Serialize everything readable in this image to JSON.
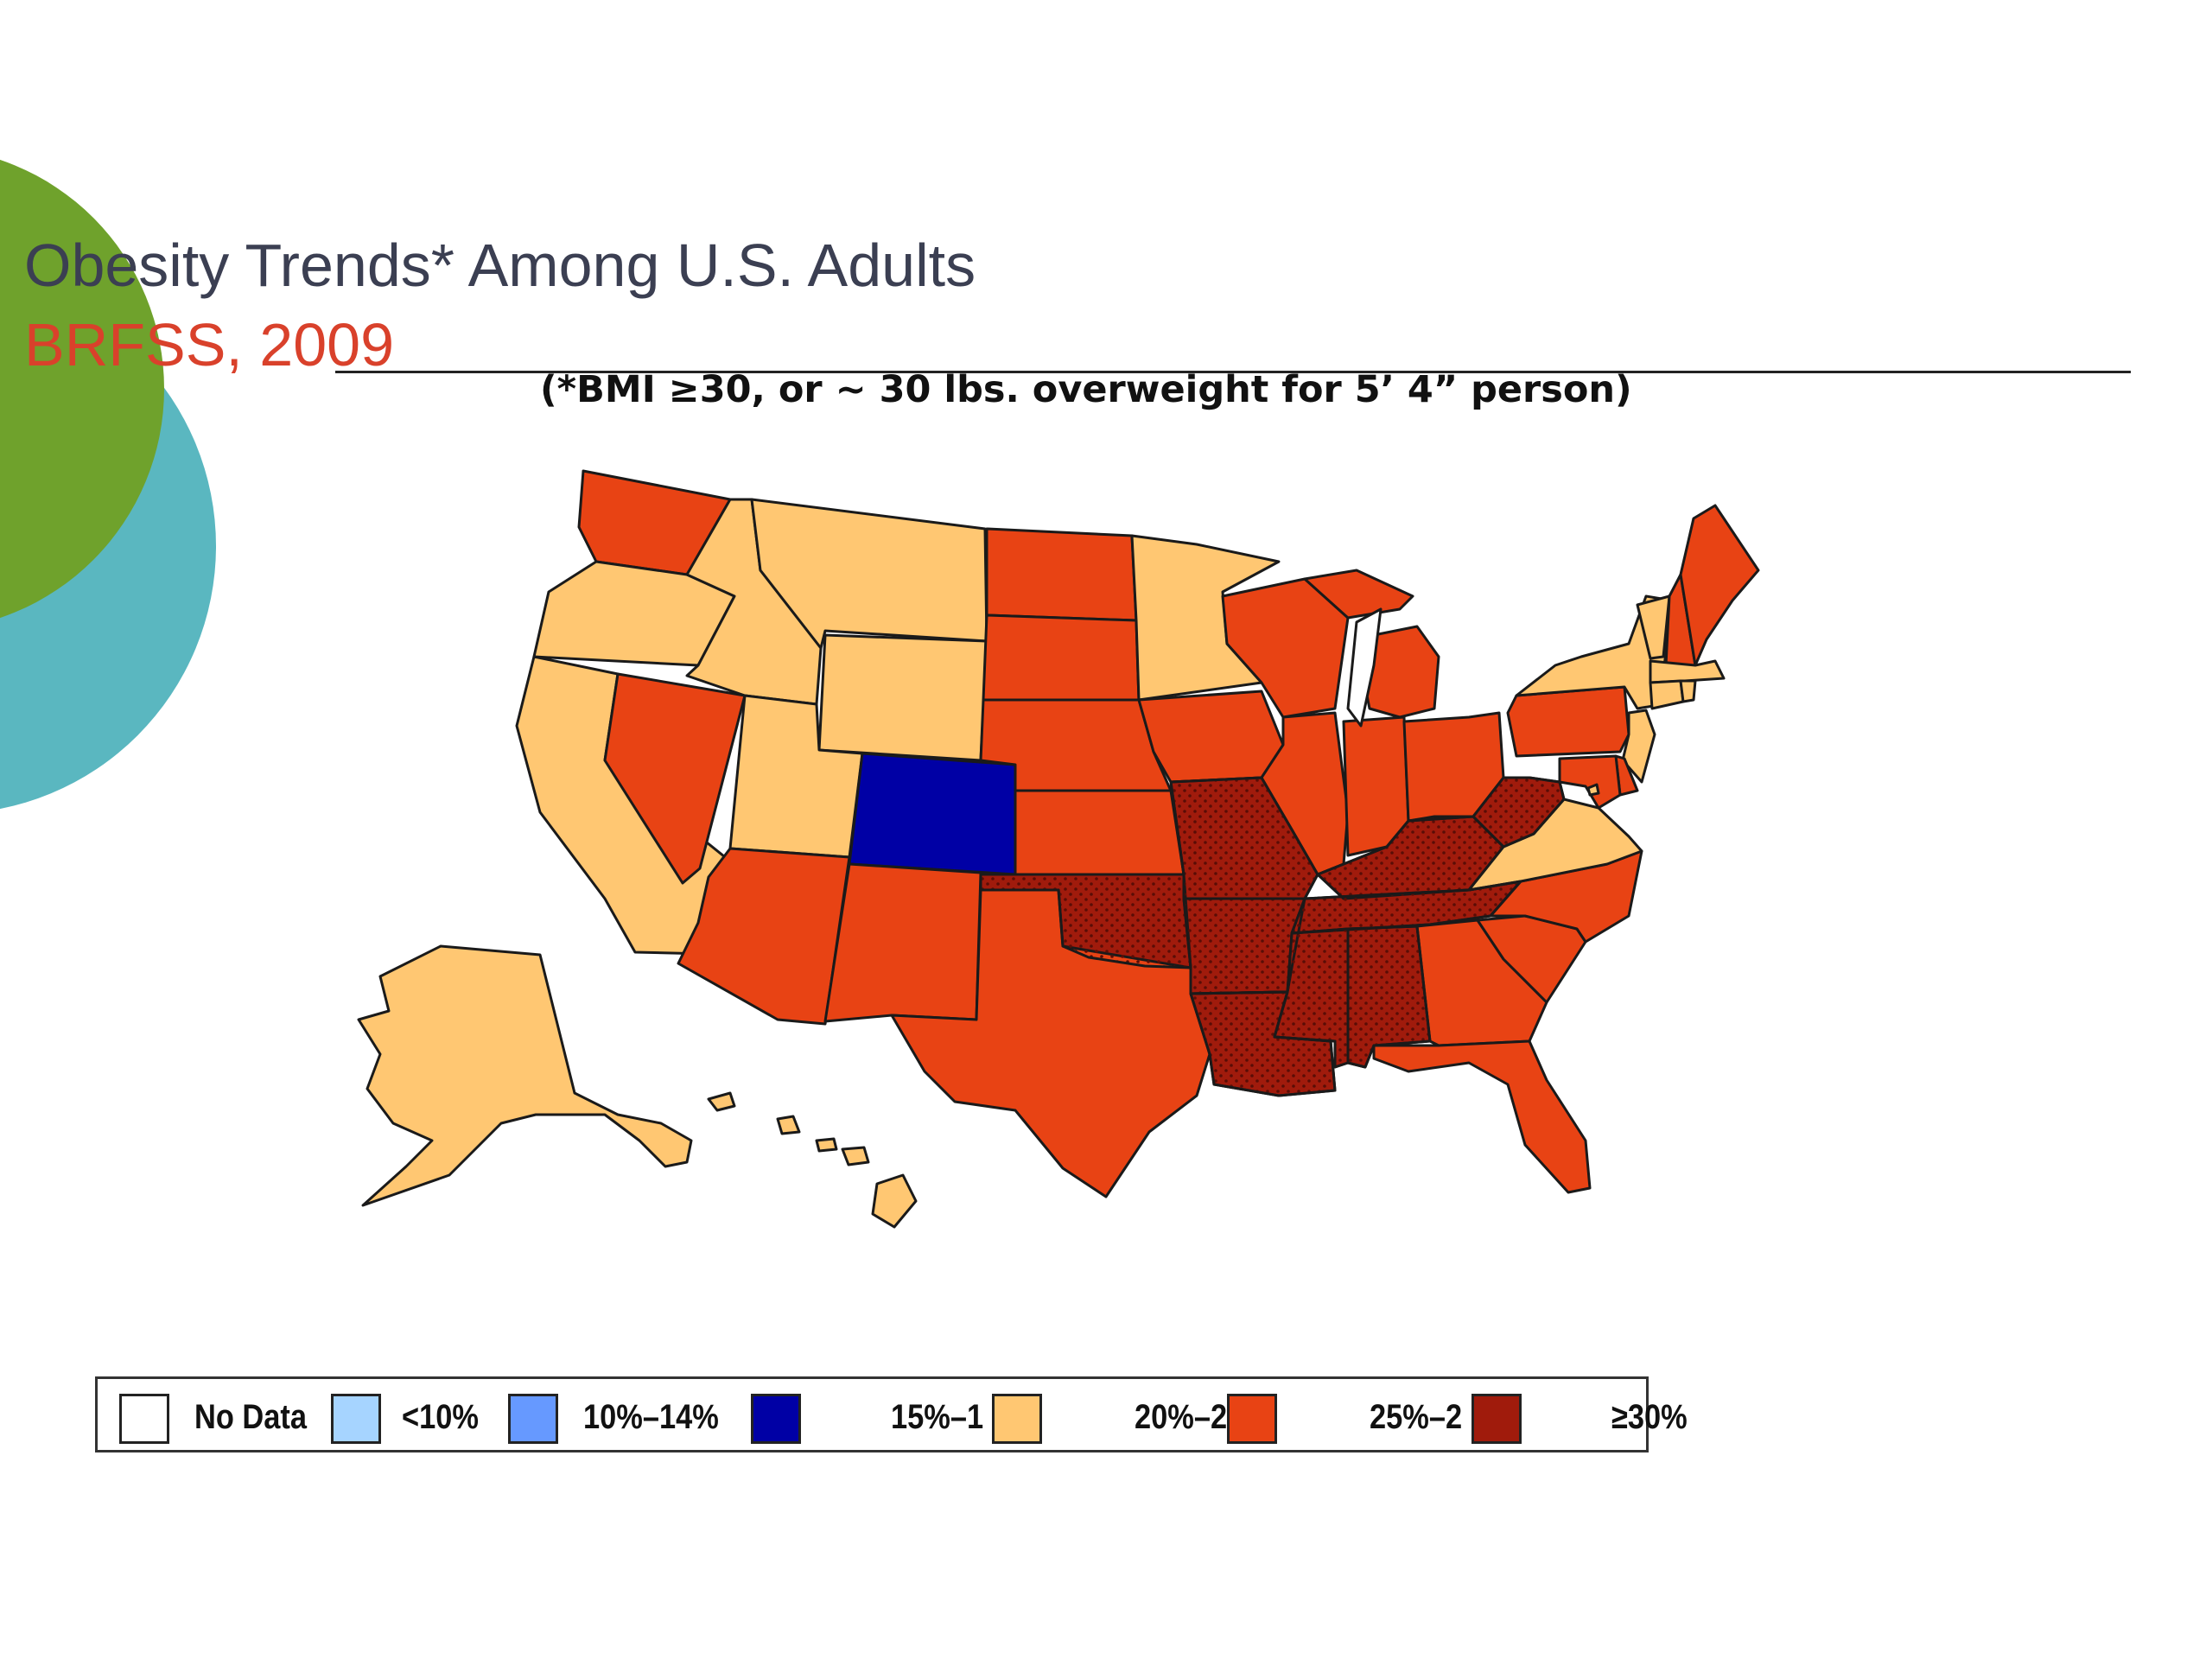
{
  "slide": {
    "title_line1": "Obesity Trends* Among U.S. Adults",
    "title_line2": "BRFSS, 2009",
    "subtitle": "(*BMI ≥30, or ~ 30 lbs. overweight for 5’ 4” person)"
  },
  "colors": {
    "title_line1": "#3b3f52",
    "title_line2": "#d9412b",
    "decor_green": "#6fa22c",
    "decor_teal": "#5ab7c0",
    "no_data": "#ffffff",
    "under_10": "#a6d4ff",
    "from_10_to_14": "#6699ff",
    "from_15_to_19": "#0000a5",
    "from_20_to_24": "#ffc772",
    "from_25_to_29": "#e84314",
    "at_least_30": "#a01b0c"
  },
  "legend": {
    "items": [
      {
        "label": "No Data",
        "category": "no_data"
      },
      {
        "label": "<10%",
        "category": "under_10"
      },
      {
        "label": "10%–14%",
        "category": "from_10_to_14"
      },
      {
        "label": "15%–1",
        "category": "from_15_to_19"
      },
      {
        "label": "20%–2",
        "category": "from_20_to_24"
      },
      {
        "label": "25%–2",
        "category": "from_25_to_29"
      },
      {
        "label": "≥30%",
        "category": "at_least_30"
      }
    ]
  },
  "map_data": {
    "regions": [
      {
        "state": "WA",
        "category": "from_25_to_29"
      },
      {
        "state": "OR",
        "category": "from_20_to_24"
      },
      {
        "state": "CA",
        "category": "from_20_to_24"
      },
      {
        "state": "NV",
        "category": "from_25_to_29"
      },
      {
        "state": "ID",
        "category": "from_20_to_24"
      },
      {
        "state": "MT",
        "category": "from_20_to_24"
      },
      {
        "state": "WY",
        "category": "from_20_to_24"
      },
      {
        "state": "UT",
        "category": "from_20_to_24"
      },
      {
        "state": "AZ",
        "category": "from_25_to_29"
      },
      {
        "state": "CO",
        "category": "from_15_to_19"
      },
      {
        "state": "NM",
        "category": "from_25_to_29"
      },
      {
        "state": "ND",
        "category": "from_25_to_29"
      },
      {
        "state": "SD",
        "category": "from_25_to_29"
      },
      {
        "state": "NE",
        "category": "from_25_to_29"
      },
      {
        "state": "KS",
        "category": "from_25_to_29"
      },
      {
        "state": "OK",
        "category": "at_least_30"
      },
      {
        "state": "TX",
        "category": "from_25_to_29"
      },
      {
        "state": "MN",
        "category": "from_20_to_24"
      },
      {
        "state": "IA",
        "category": "from_25_to_29"
      },
      {
        "state": "MO",
        "category": "at_least_30"
      },
      {
        "state": "AR",
        "category": "at_least_30"
      },
      {
        "state": "LA",
        "category": "at_least_30"
      },
      {
        "state": "WI",
        "category": "from_25_to_29"
      },
      {
        "state": "IL",
        "category": "from_25_to_29"
      },
      {
        "state": "MI",
        "category": "from_25_to_29"
      },
      {
        "state": "IN",
        "category": "from_25_to_29"
      },
      {
        "state": "OH",
        "category": "from_25_to_29"
      },
      {
        "state": "KY",
        "category": "at_least_30"
      },
      {
        "state": "TN",
        "category": "at_least_30"
      },
      {
        "state": "MS",
        "category": "at_least_30"
      },
      {
        "state": "AL",
        "category": "at_least_30"
      },
      {
        "state": "GA",
        "category": "from_25_to_29"
      },
      {
        "state": "FL",
        "category": "from_25_to_29"
      },
      {
        "state": "SC",
        "category": "from_25_to_29"
      },
      {
        "state": "NC",
        "category": "from_25_to_29"
      },
      {
        "state": "VA",
        "category": "from_20_to_24"
      },
      {
        "state": "WV",
        "category": "at_least_30"
      },
      {
        "state": "PA",
        "category": "from_25_to_29"
      },
      {
        "state": "NY",
        "category": "from_20_to_24"
      },
      {
        "state": "VT",
        "category": "from_20_to_24"
      },
      {
        "state": "NH",
        "category": "from_25_to_29"
      },
      {
        "state": "ME",
        "category": "from_25_to_29"
      },
      {
        "state": "MA",
        "category": "from_20_to_24"
      },
      {
        "state": "CT",
        "category": "from_20_to_24"
      },
      {
        "state": "RI",
        "category": "from_20_to_24"
      },
      {
        "state": "NJ",
        "category": "from_20_to_24"
      },
      {
        "state": "DE",
        "category": "from_25_to_29"
      },
      {
        "state": "MD",
        "category": "from_25_to_29"
      },
      {
        "state": "DC",
        "category": "from_20_to_24"
      },
      {
        "state": "AK",
        "category": "from_20_to_24"
      },
      {
        "state": "HI",
        "category": "from_20_to_24"
      }
    ]
  }
}
